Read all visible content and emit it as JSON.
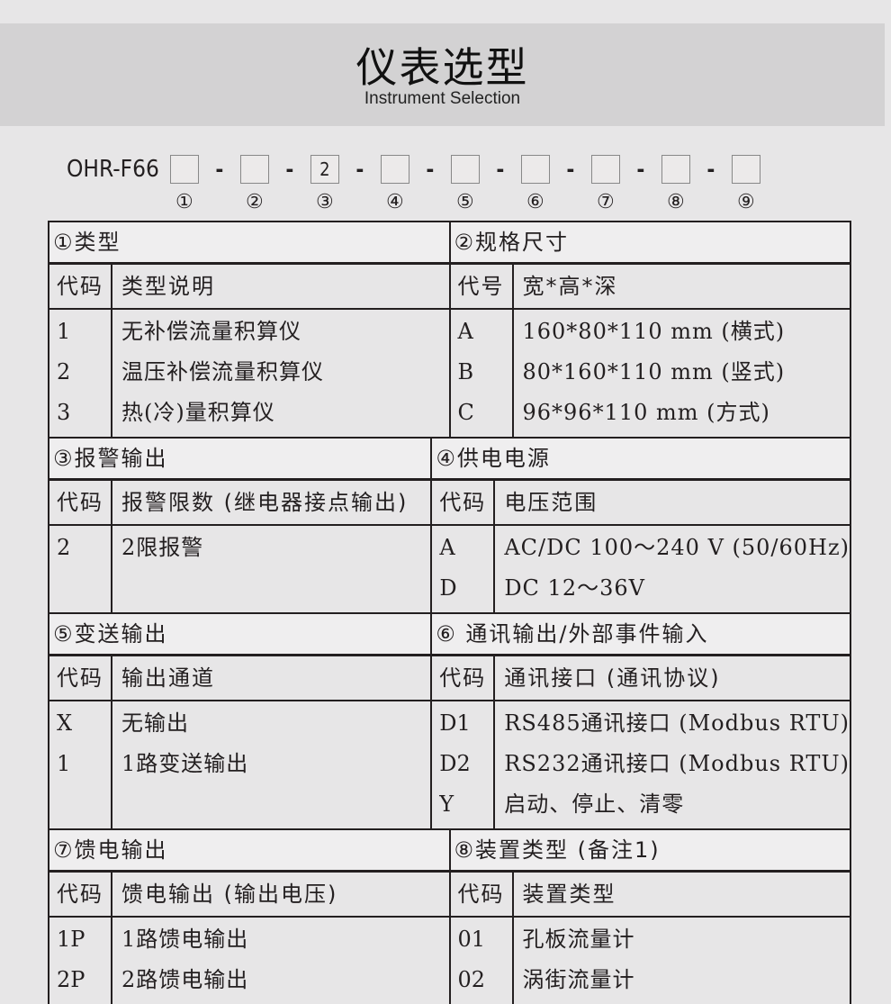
{
  "header": {
    "title": "仪表选型",
    "subtitle": "Instrument Selection"
  },
  "model_code": {
    "prefix": "OHR-F66",
    "boxes": [
      "",
      "",
      "2",
      "",
      "",
      "",
      "",
      "",
      ""
    ],
    "separator": "-",
    "position_labels": [
      "①",
      "②",
      "③",
      "④",
      "⑤",
      "⑥",
      "⑦",
      "⑧",
      "⑨"
    ]
  },
  "sections": [
    {
      "left": {
        "title": "①类型",
        "header": [
          "代码",
          "类型说明"
        ],
        "rows": [
          [
            "1",
            "无补偿流量积算仪"
          ],
          [
            "2",
            "温压补偿流量积算仪"
          ],
          [
            "3",
            "热(冷)量积算仪"
          ]
        ]
      },
      "right": {
        "title": "②规格尺寸",
        "header": [
          "代号",
          "宽*高*深"
        ],
        "rows": [
          [
            "A",
            "160*80*110 mm (横式)"
          ],
          [
            "B",
            "80*160*110 mm (竖式)"
          ],
          [
            "C",
            "96*96*110 mm (方式)"
          ]
        ]
      }
    },
    {
      "left": {
        "title": "③报警输出",
        "header": [
          "代码",
          "报警限数 (继电器接点输出)"
        ],
        "rows": [
          [
            "2",
            "2限报警"
          ]
        ]
      },
      "right": {
        "title": "④供电电源",
        "header": [
          "代码",
          "电压范围"
        ],
        "rows": [
          [
            "A",
            "AC/DC 100～240 V (50/60Hz)"
          ],
          [
            "D",
            "DC 12～36V"
          ]
        ]
      }
    },
    {
      "left": {
        "title": "⑤变送输出",
        "header": [
          "代码",
          "输出通道"
        ],
        "rows": [
          [
            "X",
            "无输出"
          ],
          [
            "1",
            "1路变送输出"
          ]
        ]
      },
      "right": {
        "title": "⑥ 通讯输出/外部事件输入",
        "header": [
          "代码",
          "通讯接口 (通讯协议)"
        ],
        "rows": [
          [
            "D1",
            "RS485通讯接口 (Modbus RTU)"
          ],
          [
            "D2",
            "RS232通讯接口 (Modbus RTU)"
          ],
          [
            "Y",
            "启动、停止、清零"
          ]
        ]
      }
    },
    {
      "left": {
        "title": "⑦馈电输出",
        "header": [
          "代码",
          "馈电输出 (输出电压)"
        ],
        "rows": [
          [
            "1P",
            "1路馈电输出"
          ],
          [
            "2P",
            "2路馈电输出"
          ]
        ]
      },
      "right": {
        "title": "⑧装置类型 (备注1)",
        "header": [
          "代码",
          "装置类型"
        ],
        "rows": [
          [
            "01",
            "孔板流量计"
          ],
          [
            "02",
            "涡街流量计"
          ]
        ]
      }
    }
  ]
}
